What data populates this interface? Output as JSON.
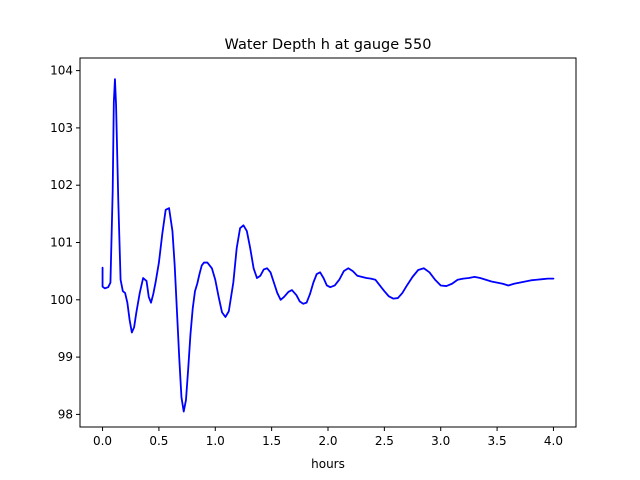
{
  "chart_data": {
    "type": "line",
    "title": "Water Depth h at gauge 550",
    "xlabel": "hours",
    "ylabel": "",
    "xlim": [
      -0.2,
      4.2
    ],
    "ylim": [
      97.78,
      104.22
    ],
    "xticks": [
      0.0,
      0.5,
      1.0,
      1.5,
      2.0,
      2.5,
      3.0,
      3.5,
      4.0
    ],
    "xtick_labels": [
      "0.0",
      "0.5",
      "1.0",
      "1.5",
      "2.0",
      "2.5",
      "3.0",
      "3.5",
      "4.0"
    ],
    "yticks": [
      98,
      99,
      100,
      101,
      102,
      103,
      104
    ],
    "ytick_labels": [
      "98",
      "99",
      "100",
      "101",
      "102",
      "103",
      "104"
    ],
    "grid": false,
    "series": [
      {
        "color": "#0000ff",
        "x": [
          0.0,
          0.0,
          0.02,
          0.05,
          0.07,
          0.09,
          0.1,
          0.11,
          0.12,
          0.14,
          0.16,
          0.18,
          0.2,
          0.22,
          0.24,
          0.26,
          0.28,
          0.3,
          0.33,
          0.36,
          0.39,
          0.41,
          0.43,
          0.45,
          0.47,
          0.5,
          0.53,
          0.56,
          0.59,
          0.62,
          0.64,
          0.66,
          0.68,
          0.7,
          0.72,
          0.74,
          0.76,
          0.78,
          0.8,
          0.82,
          0.84,
          0.86,
          0.88,
          0.9,
          0.93,
          0.97,
          1.0,
          1.03,
          1.06,
          1.09,
          1.12,
          1.16,
          1.19,
          1.22,
          1.25,
          1.28,
          1.31,
          1.34,
          1.37,
          1.4,
          1.43,
          1.46,
          1.49,
          1.52,
          1.55,
          1.58,
          1.61,
          1.65,
          1.68,
          1.72,
          1.75,
          1.78,
          1.81,
          1.84,
          1.87,
          1.9,
          1.93,
          1.96,
          1.99,
          2.02,
          2.06,
          2.1,
          2.14,
          2.18,
          2.22,
          2.26,
          2.3,
          2.34,
          2.38,
          2.42,
          2.46,
          2.5,
          2.54,
          2.58,
          2.62,
          2.66,
          2.7,
          2.75,
          2.8,
          2.85,
          2.9,
          2.95,
          3.0,
          3.05,
          3.1,
          3.15,
          3.2,
          3.25,
          3.3,
          3.35,
          3.4,
          3.45,
          3.5,
          3.55,
          3.6,
          3.65,
          3.7,
          3.75,
          3.8,
          3.85,
          3.9,
          3.95,
          4.0
        ],
        "y": [
          100.56,
          100.23,
          100.2,
          100.22,
          100.3,
          101.9,
          103.45,
          103.85,
          103.4,
          101.7,
          100.35,
          100.15,
          100.12,
          99.95,
          99.65,
          99.43,
          99.52,
          99.78,
          100.12,
          100.38,
          100.33,
          100.05,
          99.95,
          100.1,
          100.3,
          100.65,
          101.15,
          101.57,
          101.6,
          101.2,
          100.6,
          99.8,
          99.0,
          98.3,
          98.05,
          98.25,
          98.8,
          99.4,
          99.85,
          100.15,
          100.28,
          100.45,
          100.6,
          100.65,
          100.65,
          100.55,
          100.35,
          100.05,
          99.78,
          99.7,
          99.8,
          100.3,
          100.9,
          101.25,
          101.3,
          101.2,
          100.9,
          100.55,
          100.38,
          100.42,
          100.53,
          100.55,
          100.48,
          100.3,
          100.12,
          100.0,
          100.05,
          100.14,
          100.17,
          100.08,
          99.97,
          99.93,
          99.95,
          100.1,
          100.3,
          100.45,
          100.48,
          100.38,
          100.25,
          100.22,
          100.25,
          100.35,
          100.5,
          100.55,
          100.5,
          100.42,
          100.4,
          100.38,
          100.37,
          100.35,
          100.25,
          100.15,
          100.06,
          100.02,
          100.03,
          100.12,
          100.25,
          100.4,
          100.52,
          100.55,
          100.48,
          100.35,
          100.25,
          100.24,
          100.28,
          100.35,
          100.37,
          100.38,
          100.4,
          100.38,
          100.35,
          100.32,
          100.3,
          100.28,
          100.25,
          100.28,
          100.3,
          100.32,
          100.34,
          100.35,
          100.36,
          100.37,
          100.37
        ]
      }
    ]
  }
}
